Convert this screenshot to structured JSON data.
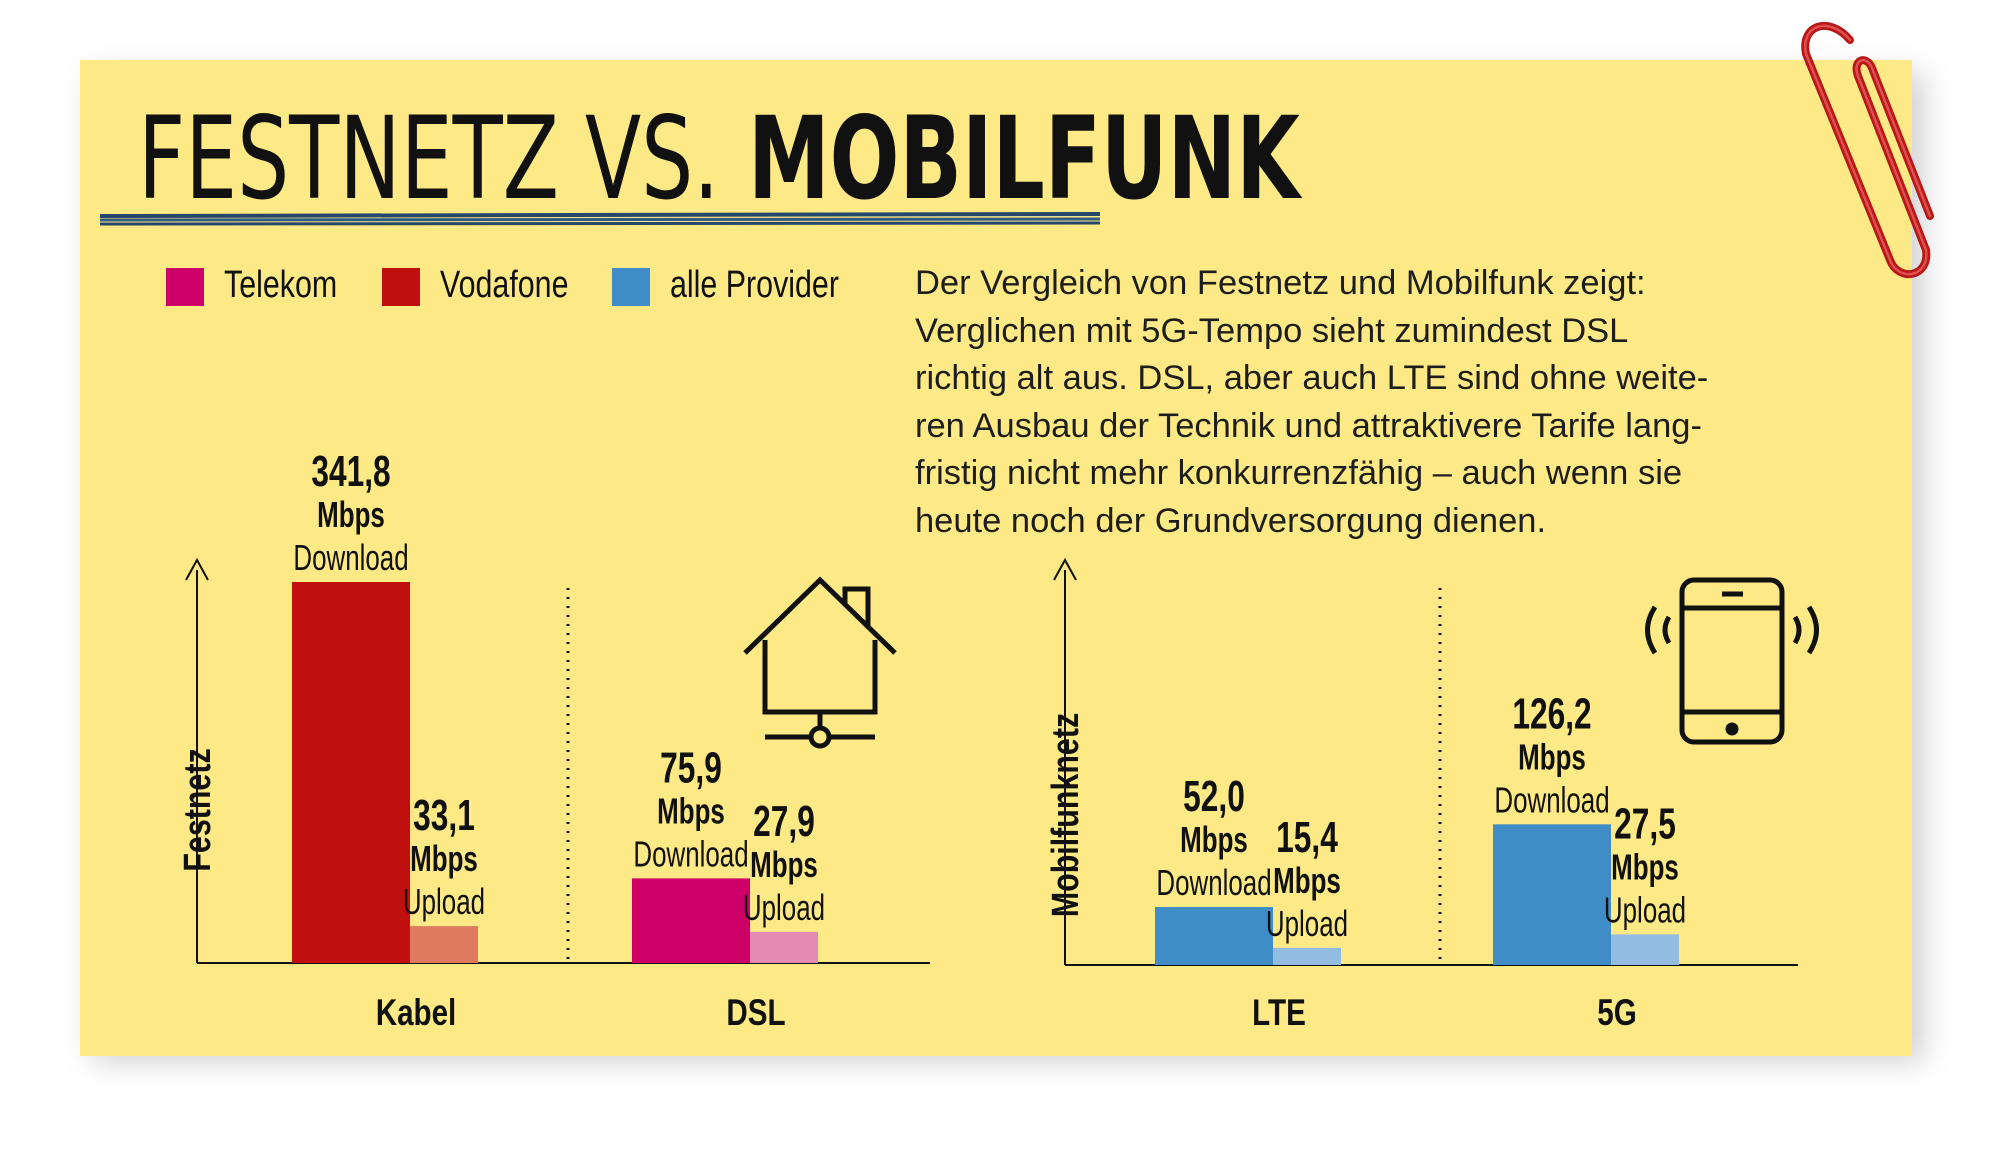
{
  "title": {
    "part1": "FESTNETZ VS.",
    "part2": "MOBILFUNK"
  },
  "legend": [
    {
      "label": "Telekom",
      "color": "#cc0066"
    },
    {
      "label": "Vodafone",
      "color": "#c00f0f"
    },
    {
      "label": "alle Provider",
      "color": "#3f8cc6"
    }
  ],
  "description": [
    "Der Vergleich von Festnetz und Mobilfunk zeigt:",
    "Verglichen mit 5G-Tempo sieht zumindest DSL",
    "richtig alt aus. DSL, aber auch LTE sind ohne weite-",
    "ren Ausbau der Technik und attraktivere Tarife lang-",
    "fristig nicht mehr konkurrenzfähig – auch wenn sie",
    "heute noch der Grundversorgung dienen."
  ],
  "chart_data": [
    {
      "type": "bar",
      "ylabel": "Festnetz",
      "categories": [
        "Kabel",
        "DSL"
      ],
      "unit": "Mbps",
      "bars": [
        {
          "category": "Kabel",
          "kind": "Download",
          "value": 341.8,
          "label": "341,8",
          "provider": "Vodafone",
          "color": "#c00f0f"
        },
        {
          "category": "Kabel",
          "kind": "Upload",
          "value": 33.1,
          "label": "33,1",
          "provider": "Vodafone",
          "color": "#de7a5e"
        },
        {
          "category": "DSL",
          "kind": "Download",
          "value": 75.9,
          "label": "75,9",
          "provider": "Telekom",
          "color": "#cc0066"
        },
        {
          "category": "DSL",
          "kind": "Upload",
          "value": 27.9,
          "label": "27,9",
          "provider": "Telekom",
          "color": "#e58ab0"
        }
      ]
    },
    {
      "type": "bar",
      "ylabel": "Mobilfunknetz",
      "categories": [
        "LTE",
        "5G"
      ],
      "unit": "Mbps",
      "bars": [
        {
          "category": "LTE",
          "kind": "Download",
          "value": 52.0,
          "label": "52,0",
          "provider": "alle Provider",
          "color": "#3f8cc6"
        },
        {
          "category": "LTE",
          "kind": "Upload",
          "value": 15.4,
          "label": "15,4",
          "provider": "alle Provider",
          "color": "#93bce2"
        },
        {
          "category": "5G",
          "kind": "Download",
          "value": 126.2,
          "label": "126,2",
          "provider": "alle Provider",
          "color": "#3f8cc6"
        },
        {
          "category": "5G",
          "kind": "Upload",
          "value": 27.5,
          "label": "27,5",
          "provider": "alle Provider",
          "color": "#93bce2"
        }
      ]
    }
  ],
  "icons": {
    "house": "house-network-icon",
    "phone": "smartphone-signal-icon",
    "clip": "paperclip-icon"
  }
}
